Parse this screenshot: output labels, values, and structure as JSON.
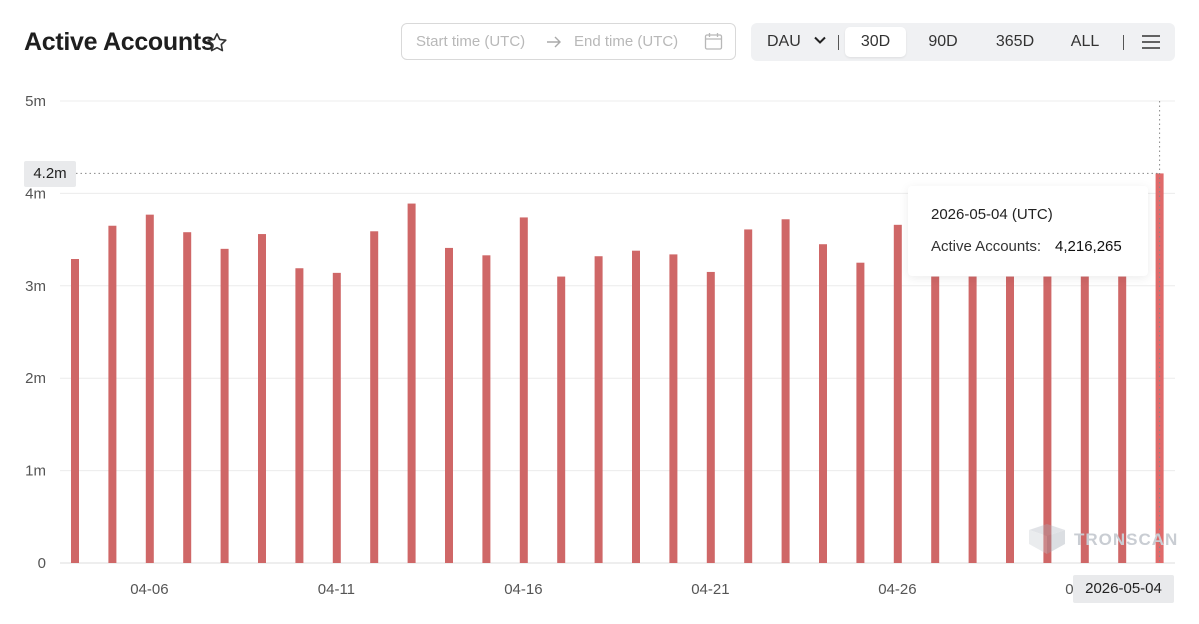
{
  "header": {
    "title": "Active Accounts",
    "favorite_icon": "star-outline-icon"
  },
  "date_range": {
    "start_placeholder": "Start time (UTC)",
    "end_placeholder": "End time (UTC)",
    "arrow_icon": "arrow-right-icon",
    "calendar_icon": "calendar-icon"
  },
  "toolbar": {
    "metric_select": "DAU",
    "periods": [
      "30D",
      "90D",
      "365D",
      "ALL"
    ],
    "active_period": "30D",
    "menu_icon": "hamburger-menu-icon"
  },
  "tooltip": {
    "date": "2026-05-04 (UTC)",
    "label": "Active Accounts:",
    "value": "4,216,265"
  },
  "crosshair": {
    "y_label": "4.2m",
    "x_label": "2026-05-04"
  },
  "watermark": "TRONSCAN",
  "colors": {
    "bar": "#cf6767",
    "bar_highlight": "#e06a6a",
    "grid": "#ececec"
  },
  "chart_data": {
    "type": "bar",
    "title": "Active Accounts",
    "x": [
      "04-05",
      "04-06",
      "04-07",
      "04-08",
      "04-09",
      "04-10",
      "04-11",
      "04-12",
      "04-13",
      "04-14",
      "04-15",
      "04-16",
      "04-17",
      "04-18",
      "04-19",
      "04-20",
      "04-21",
      "04-22",
      "04-23",
      "04-24",
      "04-25",
      "04-26",
      "04-27",
      "04-28",
      "04-29",
      "04-30",
      "05-01",
      "05-02",
      "05-03",
      "05-04"
    ],
    "x_tick_labels": [
      "04-06",
      "04-11",
      "04-16",
      "04-21",
      "04-26",
      "05-01"
    ],
    "y_tick_labels": [
      "0",
      "1m",
      "2m",
      "3m",
      "4m",
      "5m"
    ],
    "series": [
      {
        "values": [
          3290000,
          3650000,
          3770000,
          3580000,
          3400000,
          3560000,
          3190000,
          3140000,
          3590000,
          3890000,
          3410000,
          3330000,
          3740000,
          3100000,
          3320000,
          3380000,
          3340000,
          3150000,
          3610000,
          3720000,
          3450000,
          3250000,
          3660000,
          3100000,
          3100000,
          3100000,
          3100000,
          3100000,
          3100000,
          4216265
        ]
      }
    ],
    "ylim": [
      0,
      5000000
    ],
    "grid": true,
    "highlighted_index": 29
  }
}
